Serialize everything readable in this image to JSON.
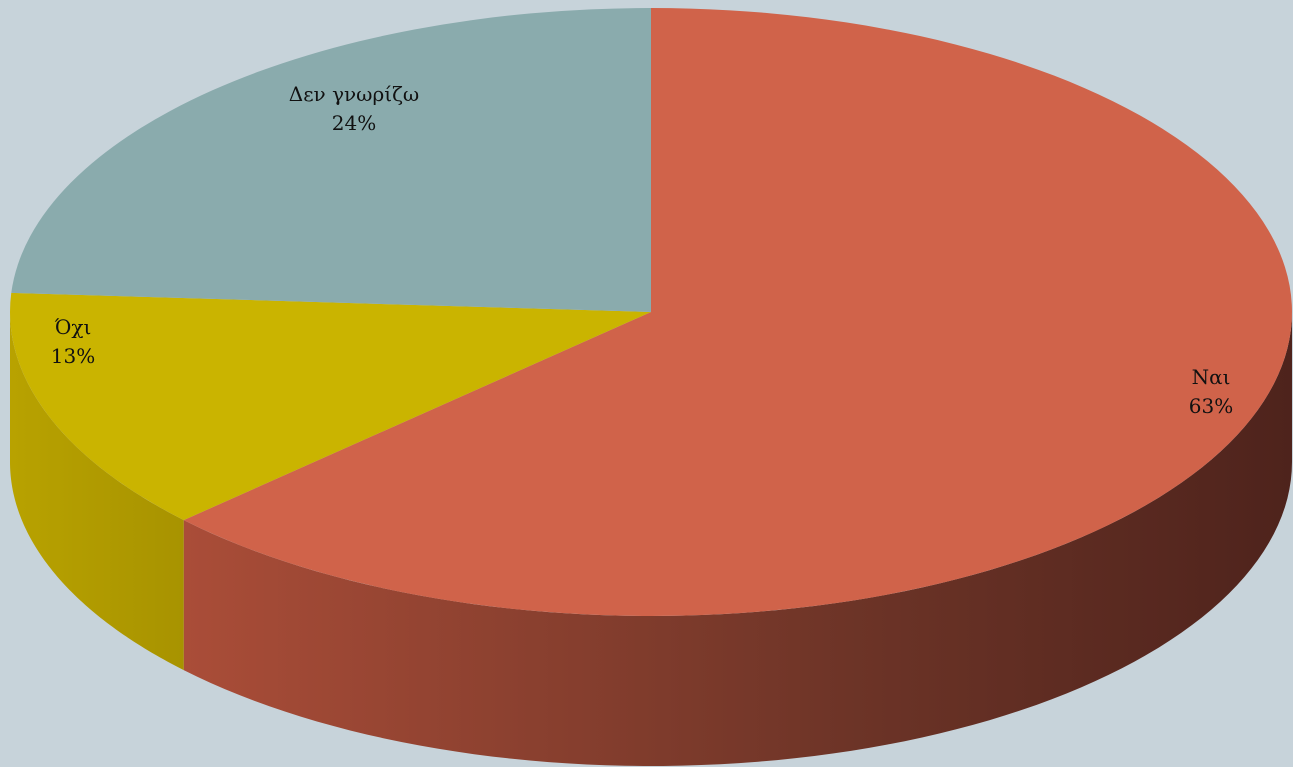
{
  "chart_data": {
    "type": "pie",
    "style": "3d",
    "start_angle": "12 o'clock",
    "direction": "clockwise",
    "slices": [
      {
        "label": "Ναι",
        "value": 63,
        "percent_label": "63%",
        "color": "#d0634a"
      },
      {
        "label": "Όχι",
        "value": 13,
        "percent_label": "13%",
        "color": "#cab400"
      },
      {
        "label": "Δεν γνωρίζω",
        "value": 24,
        "percent_label": "24%",
        "color": "#8aabad"
      }
    ],
    "background_color": "#c7d3da"
  }
}
